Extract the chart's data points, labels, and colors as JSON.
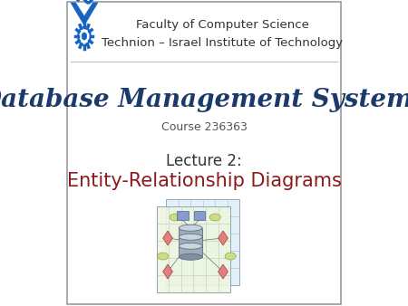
{
  "background_color": "#ffffff",
  "title_main": "Database Management Systems",
  "title_main_color": "#1B3A6B",
  "title_main_fontsize": 20,
  "course_text": "Course 236363",
  "course_color": "#555555",
  "course_fontsize": 9,
  "lecture_label": "Lecture 2:",
  "lecture_label_color": "#333333",
  "lecture_label_fontsize": 12,
  "lecture_title": "Entity-Relationship Diagrams",
  "lecture_title_color": "#8B1A1A",
  "lecture_title_fontsize": 15,
  "faculty_line1": "Faculty of Computer Science",
  "faculty_line2": "Technion – Israel Institute of Technology",
  "faculty_color": "#333333",
  "faculty_fontsize": 9.5,
  "logo_color": "#1565C0",
  "slide_border_color": "#999999",
  "slide_border_lw": 1.2
}
